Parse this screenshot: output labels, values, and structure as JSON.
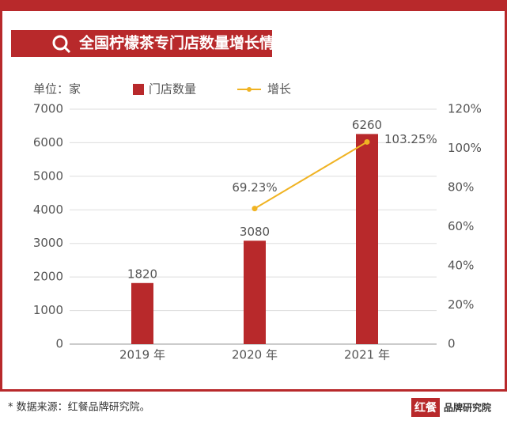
{
  "chart_data": {
    "type": "bar-line",
    "title": "全国柠檬茶专门店数量增长情况",
    "y_label": "单位：家",
    "categories": [
      "2019 年",
      "2020 年",
      "2021 年"
    ],
    "series": [
      {
        "name": "门店数量",
        "type": "bar",
        "color": "#b8292b",
        "values": [
          1820,
          3080,
          6260
        ]
      },
      {
        "name": "增长",
        "type": "line",
        "axis": "y2",
        "color": "#f0b323",
        "values": [
          null,
          69.23,
          103.25
        ],
        "value_labels": [
          null,
          "69.23%",
          "103.25%"
        ]
      }
    ],
    "ylim": [
      0,
      7000
    ],
    "yticks": [
      0,
      1000,
      2000,
      3000,
      4000,
      5000,
      6000,
      7000
    ],
    "y2lim": [
      0,
      120
    ],
    "y2ticks": [
      0,
      {
        "value": 20,
        "label": "20%"
      },
      {
        "value": 40,
        "label": "40%"
      },
      {
        "value": 60,
        "label": "60%"
      },
      {
        "value": 80,
        "label": "80%"
      },
      {
        "value": 100,
        "label": "100%"
      },
      {
        "value": 120,
        "label": "120%"
      }
    ],
    "grid": true,
    "footer": {
      "source": "* 数据来源：红餐品牌研究院。",
      "logo_main": "红餐",
      "logo_sub": "品牌研究院"
    }
  }
}
